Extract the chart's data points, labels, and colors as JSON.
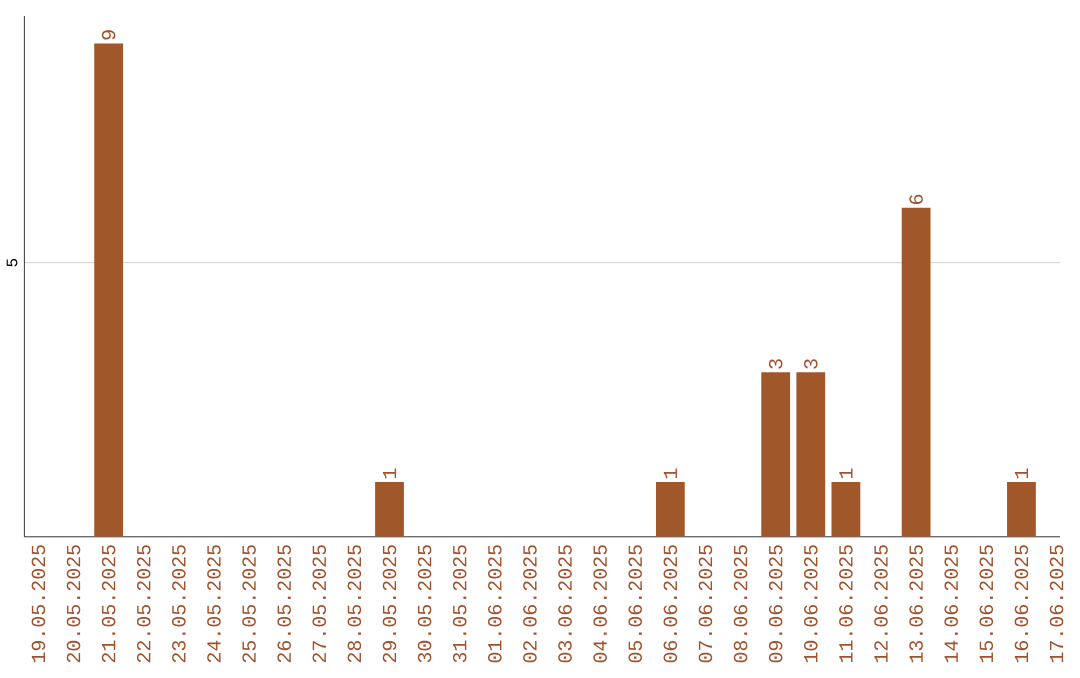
{
  "chart_data": {
    "type": "bar",
    "categories": [
      "19.05.2025",
      "20.05.2025",
      "21.05.2025",
      "22.05.2025",
      "23.05.2025",
      "24.05.2025",
      "25.05.2025",
      "26.05.2025",
      "27.05.2025",
      "28.05.2025",
      "29.05.2025",
      "30.05.2025",
      "31.05.2025",
      "01.06.2025",
      "02.06.2025",
      "03.06.2025",
      "04.06.2025",
      "05.06.2025",
      "06.06.2025",
      "07.06.2025",
      "08.06.2025",
      "09.06.2025",
      "10.06.2025",
      "11.06.2025",
      "12.06.2025",
      "13.06.2025",
      "14.06.2025",
      "15.06.2025",
      "16.06.2025",
      "17.06.2025"
    ],
    "values": [
      0,
      0,
      9,
      0,
      0,
      0,
      0,
      0,
      0,
      0,
      1,
      0,
      0,
      0,
      0,
      0,
      0,
      0,
      1,
      0,
      0,
      3,
      3,
      1,
      0,
      6,
      0,
      0,
      1,
      0
    ],
    "value_labels": [
      null,
      null,
      "9",
      null,
      null,
      null,
      null,
      null,
      null,
      null,
      "1",
      null,
      null,
      null,
      null,
      null,
      null,
      null,
      "1",
      null,
      null,
      "3",
      "3",
      "1",
      null,
      "6",
      null,
      null,
      "1",
      null
    ],
    "color": "#a0572a",
    "ylim": [
      0,
      9.5
    ],
    "yticks": [
      5
    ],
    "grid": "y"
  }
}
